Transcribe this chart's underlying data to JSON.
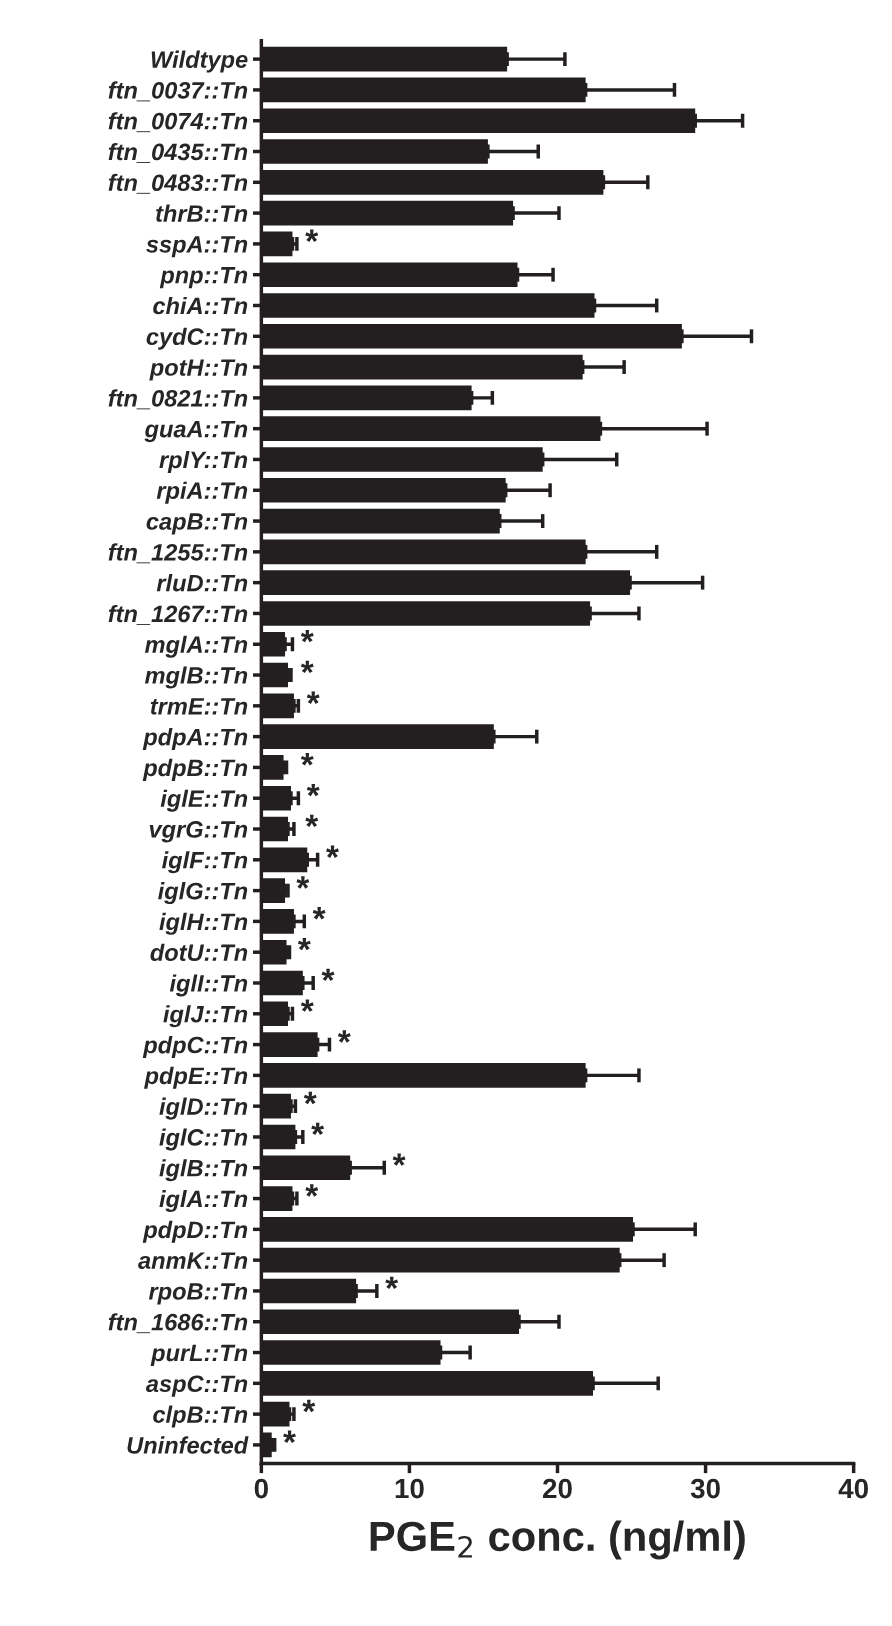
{
  "chart_data": {
    "type": "bar",
    "orientation": "horizontal",
    "xlabel": "PGE$_{2}$ conc. (ng/ml)",
    "categories": [
      "Wildtype",
      "ftn_0037::Tn",
      "ftn_0074::Tn",
      "ftn_0435::Tn",
      "ftn_0483::Tn",
      "thrB::Tn",
      "sspA::Tn",
      "pnp::Tn",
      "chiA::Tn",
      "cydC::Tn",
      "potH::Tn",
      "ftn_0821::Tn",
      "guaA::Tn",
      "rplY::Tn",
      "rpiA::Tn",
      "capB::Tn",
      "ftn_1255::Tn",
      "rluD::Tn",
      "ftn_1267::Tn",
      "mglA::Tn",
      "mglB::Tn",
      "trmE::Tn",
      "pdpA::Tn",
      "pdpB::Tn",
      "iglE::Tn",
      "vgrG::Tn",
      "iglF::Tn",
      "iglG::Tn",
      "iglH::Tn",
      "dotU::Tn",
      "iglI::Tn",
      "iglJ::Tn",
      "pdpC::Tn",
      "pdpE::Tn",
      "iglD::Tn",
      "iglC::Tn",
      "iglB::Tn",
      "iglA::Tn",
      "pdpD::Tn",
      "anmK::Tn",
      "rpoB::Tn",
      "ftn_1686::Tn",
      "purL::Tn",
      "aspC::Tn",
      "clpB::Tn",
      "Uninfected"
    ],
    "values": [
      16.6,
      21.9,
      29.3,
      15.3,
      23.1,
      17.0,
      2.1,
      17.3,
      22.5,
      28.4,
      21.7,
      14.2,
      22.9,
      19.0,
      16.5,
      16.1,
      21.9,
      24.9,
      22.2,
      1.6,
      1.8,
      2.2,
      15.7,
      1.5,
      2.0,
      1.8,
      3.1,
      1.6,
      2.2,
      1.7,
      2.8,
      1.8,
      3.8,
      21.9,
      2.0,
      2.3,
      6.0,
      2.1,
      25.1,
      24.2,
      6.4,
      17.4,
      12.1,
      22.4,
      1.9,
      0.7
    ],
    "errors": [
      [
        16.6,
        20.5
      ],
      [
        21.9,
        27.9
      ],
      [
        29.3,
        32.5
      ],
      [
        15.3,
        18.7
      ],
      [
        23.1,
        26.1
      ],
      [
        17.0,
        20.1
      ],
      [
        2.1,
        2.4
      ],
      [
        17.3,
        19.7
      ],
      [
        22.5,
        26.7
      ],
      [
        28.4,
        33.1
      ],
      [
        21.7,
        24.5
      ],
      [
        14.2,
        15.6
      ],
      [
        22.9,
        30.1
      ],
      [
        19.0,
        24.0
      ],
      [
        16.5,
        19.5
      ],
      [
        16.1,
        19.0
      ],
      [
        21.9,
        26.7
      ],
      [
        24.9,
        29.8
      ],
      [
        22.2,
        25.5
      ],
      [
        1.6,
        2.1
      ],
      [
        1.8,
        2.0
      ],
      [
        2.2,
        2.5
      ],
      [
        15.7,
        18.6
      ],
      [
        1.5,
        1.7
      ],
      [
        2.0,
        2.5
      ],
      [
        1.8,
        2.2
      ],
      [
        3.1,
        3.8
      ],
      [
        1.6,
        1.8
      ],
      [
        2.2,
        2.9
      ],
      [
        1.7,
        1.9
      ],
      [
        2.8,
        3.5
      ],
      [
        1.8,
        2.1
      ],
      [
        3.8,
        4.6
      ],
      [
        21.9,
        25.5
      ],
      [
        2.0,
        2.3
      ],
      [
        2.3,
        2.8
      ],
      [
        6.0,
        8.3
      ],
      [
        2.1,
        2.4
      ],
      [
        25.1,
        29.3
      ],
      [
        24.2,
        27.2
      ],
      [
        6.4,
        7.8
      ],
      [
        17.4,
        20.1
      ],
      [
        12.1,
        14.1
      ],
      [
        22.4,
        26.8
      ],
      [
        1.9,
        2.2
      ],
      [
        0.7,
        0.9
      ]
    ],
    "color": "#231f20",
    "xlim": [
      0,
      40
    ],
    "xticks": [
      0,
      10,
      20,
      30,
      40
    ],
    "grid": false,
    "legend": false,
    "annotations": [
      {
        "text": "*",
        "x": 2.4,
        "y": "sspA::Tn"
      },
      {
        "text": "*",
        "x": 2.1,
        "y": "mglA::Tn"
      },
      {
        "text": "*",
        "x": 2.1,
        "y": "mglB::Tn"
      },
      {
        "text": "*",
        "x": 2.5,
        "y": "trmE::Tn"
      },
      {
        "text": "*",
        "x": 2.1,
        "y": "pdpB::Tn"
      },
      {
        "text": "*",
        "x": 2.5,
        "y": "iglE::Tn"
      },
      {
        "text": "*",
        "x": 2.4,
        "y": "vgrG::Tn"
      },
      {
        "text": "*",
        "x": 3.8,
        "y": "iglF::Tn"
      },
      {
        "text": "*",
        "x": 1.8,
        "y": "iglG::Tn"
      },
      {
        "text": "*",
        "x": 2.9,
        "y": "iglH::Tn"
      },
      {
        "text": "*",
        "x": 1.9,
        "y": "dotU::Tn"
      },
      {
        "text": "*",
        "x": 3.5,
        "y": "iglI::Tn"
      },
      {
        "text": "*",
        "x": 2.1,
        "y": "iglJ::Tn"
      },
      {
        "text": "*",
        "x": 4.6,
        "y": "pdpC::Tn"
      },
      {
        "text": "*",
        "x": 2.3,
        "y": "iglD::Tn"
      },
      {
        "text": "*",
        "x": 2.8,
        "y": "iglC::Tn"
      },
      {
        "text": "*",
        "x": 8.3,
        "y": "iglB::Tn"
      },
      {
        "text": "*",
        "x": 2.4,
        "y": "iglA::Tn"
      },
      {
        "text": "*",
        "x": 7.8,
        "y": "rpoB::Tn"
      },
      {
        "text": "*",
        "x": 2.2,
        "y": "clpB::Tn"
      },
      {
        "text": "*",
        "x": 0.9,
        "y": "Uninfected"
      }
    ]
  }
}
